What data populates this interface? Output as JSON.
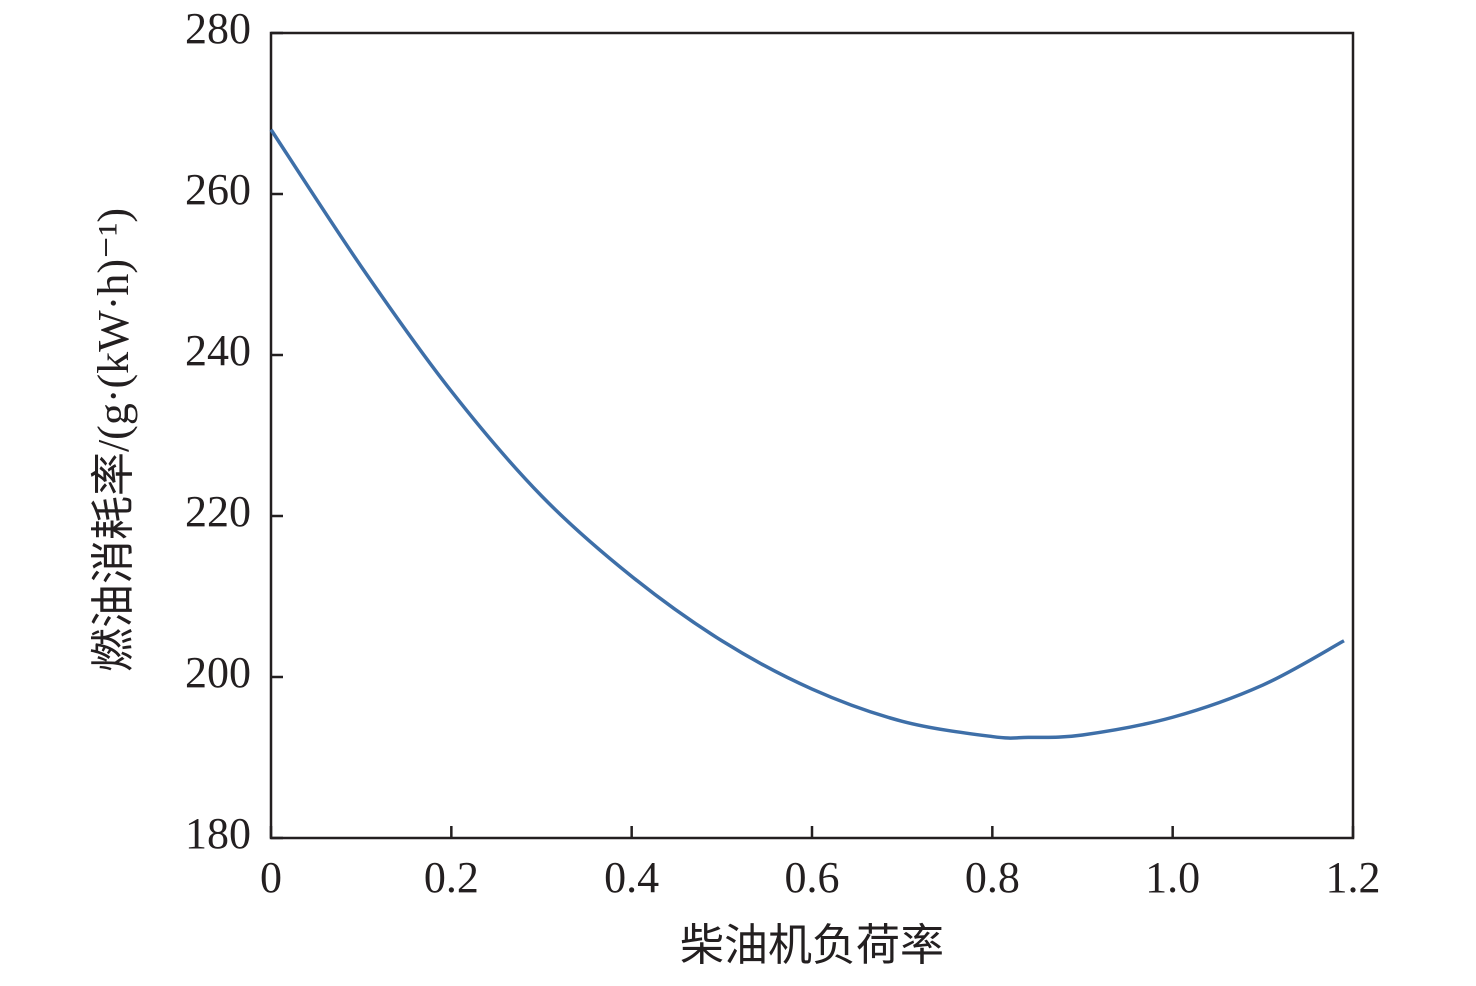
{
  "chart_data": {
    "type": "line",
    "x_label": "柴油机负荷率",
    "y_label": "燃油消耗率/(g·(kW·h)⁻¹)",
    "x": [
      0,
      0.1,
      0.2,
      0.3,
      0.4,
      0.5,
      0.6,
      0.7,
      0.8,
      0.84,
      0.9,
      1.0,
      1.1,
      1.19
    ],
    "series": [
      {
        "color": "#3e6fa8",
        "values": [
          268,
          251,
          235.5,
          222.5,
          212.5,
          204.5,
          198.5,
          194.5,
          192.6,
          192.5,
          192.8,
          195,
          199,
          204.5
        ]
      }
    ],
    "xlim": [
      0,
      1.2
    ],
    "xticks": [
      0,
      0.2,
      0.4,
      0.6,
      0.8,
      {
        "value": 1,
        "label": "1.0"
      },
      1.2
    ],
    "ylim": [
      180,
      280
    ],
    "yticks": [
      180,
      200,
      220,
      240,
      260,
      280
    ]
  }
}
